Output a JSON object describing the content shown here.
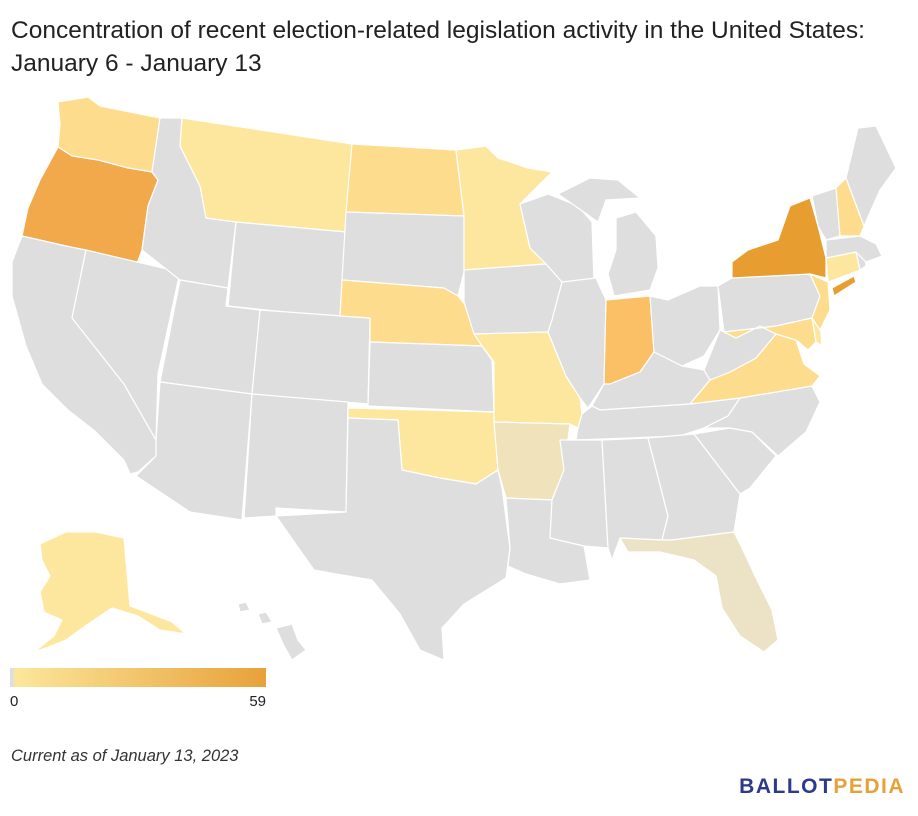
{
  "title": "Concentration of recent election-related legislation activity in the United States: January 6 - January 13",
  "footnote": "Current as of January 13, 2023",
  "logo": {
    "part1": "BALLOT",
    "part2": "PEDIA",
    "color1": "#2b3a8c",
    "color2": "#e8a13a"
  },
  "legend": {
    "min": "0",
    "max": "59",
    "color_min": "#fbe79b",
    "color_max": "#e8a13a",
    "color_zero": "#dedede"
  },
  "colors": {
    "none": "#dedede",
    "light": "#fde79e",
    "light2": "#fddc8e",
    "medium": "#fbbf66",
    "high": "#f2a94b",
    "max": "#e79d2f",
    "low_tan": "#f0e2bb",
    "faint": "#ece2c6"
  },
  "states": {
    "WA": "light2",
    "OR": "high",
    "CA": "none",
    "NV": "none",
    "ID": "none",
    "MT": "light",
    "WY": "none",
    "UT": "none",
    "AZ": "none",
    "CO": "none",
    "NM": "none",
    "ND": "light2",
    "SD": "none",
    "NE": "light2",
    "KS": "none",
    "OK": "light",
    "TX": "none",
    "MN": "light",
    "IA": "none",
    "MO": "light",
    "AR": "low_tan",
    "LA": "none",
    "WI": "none",
    "IL": "none",
    "MI": "none",
    "IN": "medium",
    "OH": "none",
    "KY": "none",
    "TN": "none",
    "MS": "none",
    "AL": "none",
    "GA": "none",
    "FL": "faint",
    "SC": "none",
    "NC": "none",
    "VA": "light2",
    "WV": "none",
    "PA": "none",
    "NY": "max",
    "VT": "none",
    "NH": "light2",
    "ME": "none",
    "MA": "none",
    "CT": "light",
    "RI": "none",
    "NJ": "light2",
    "DE": "light",
    "MD": "light2",
    "AK": "light",
    "HI": "none"
  }
}
